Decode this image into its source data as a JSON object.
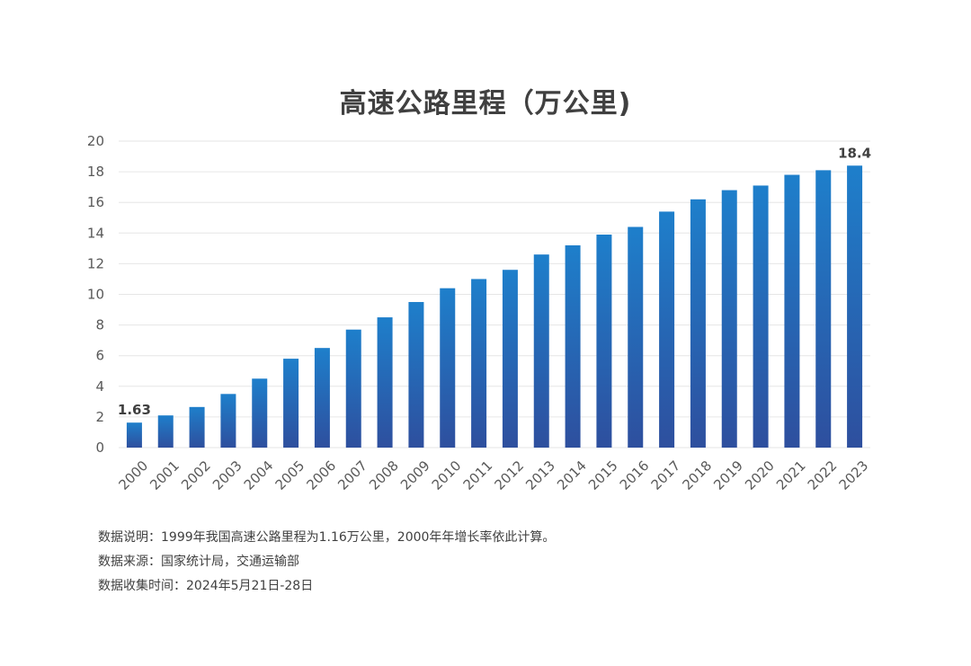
{
  "chart_data": {
    "type": "bar",
    "title": "高速公路里程（万公里)",
    "xlabel": "",
    "ylabel": "",
    "ylim": [
      0,
      20
    ],
    "yticks": [
      0,
      2,
      4,
      6,
      8,
      10,
      12,
      14,
      16,
      18,
      20
    ],
    "grid": true,
    "legend": "none",
    "categories": [
      "2000",
      "2001",
      "2002",
      "2003",
      "2004",
      "2005",
      "2006",
      "2007",
      "2008",
      "2009",
      "2010",
      "2011",
      "2012",
      "2013",
      "2014",
      "2015",
      "2016",
      "2017",
      "2018",
      "2019",
      "2020",
      "2021",
      "2022",
      "2023"
    ],
    "values": [
      1.63,
      2.1,
      2.65,
      3.5,
      4.5,
      5.8,
      6.5,
      7.7,
      8.5,
      9.5,
      10.4,
      11.0,
      11.6,
      12.6,
      13.2,
      13.9,
      14.4,
      15.4,
      16.2,
      16.8,
      17.1,
      17.8,
      18.1,
      18.4
    ],
    "data_labels": [
      {
        "index": 0,
        "text": "1.63"
      },
      {
        "index": 23,
        "text": "18.4"
      }
    ],
    "colors": {
      "bar_top": "#1E7FCB",
      "bar_bottom": "#2E4F9E",
      "axis_text": "#595959",
      "grid": "#E6E6E6",
      "label_text": "#404040"
    }
  },
  "notes": {
    "line1": "数据说明：1999年我国高速公路里程为1.16万公里，2000年年增长率依此计算。",
    "line2": "数据来源：国家统计局，交通运输部",
    "line3": "数据收集时间：2024年5月21日-28日"
  }
}
